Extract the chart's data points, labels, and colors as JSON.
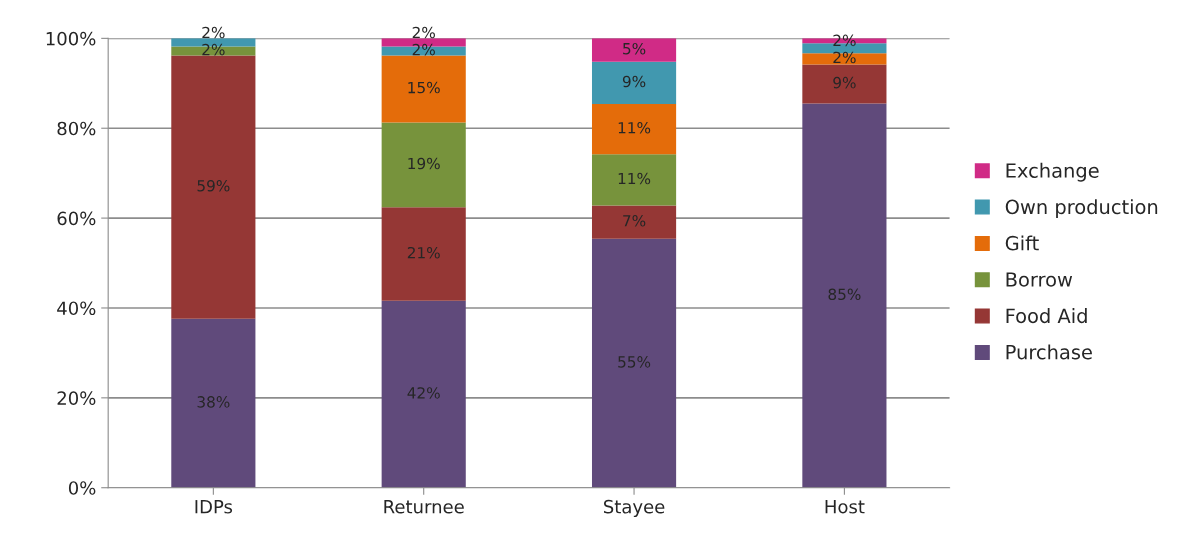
{
  "chart_data": {
    "type": "bar",
    "stacked": true,
    "categories": [
      "IDPs",
      "Returnee",
      "Stayee",
      "Host"
    ],
    "series": [
      {
        "name": "Purchase",
        "color": "#604a7b",
        "values": [
          37.6,
          41.6,
          55.4,
          85.5
        ],
        "value_labels": [
          "38%",
          "42%",
          "55%",
          "85%"
        ]
      },
      {
        "name": "Food Aid",
        "color": "#953735",
        "values": [
          58.6,
          20.8,
          7.4,
          8.7
        ],
        "value_labels": [
          "59%",
          "21%",
          "7%",
          "9%"
        ]
      },
      {
        "name": "Borrow",
        "color": "#77933c",
        "values": [
          2.0,
          18.9,
          11.4,
          0
        ],
        "value_labels": [
          "2%",
          "19%",
          "11%",
          null
        ]
      },
      {
        "name": "Gift",
        "color": "#e46c0a",
        "values": [
          0,
          14.9,
          11.2,
          2.5
        ],
        "value_labels": [
          null,
          "15%",
          "11%",
          "2%"
        ]
      },
      {
        "name": "Own production",
        "color": "#4198af",
        "values": [
          1.8,
          2.0,
          9.4,
          2.2
        ],
        "value_labels": [
          "2%",
          "2%",
          "9%",
          "2%"
        ]
      },
      {
        "name": "Exchange",
        "color": "#d02b86",
        "values": [
          0,
          1.8,
          5.2,
          1.1
        ],
        "value_labels": [
          null,
          "2%",
          "5%",
          null
        ]
      }
    ],
    "ylim": [
      0,
      100
    ],
    "yticks": [
      {
        "value": 0,
        "label": "0%"
      },
      {
        "value": 20,
        "label": "20%"
      },
      {
        "value": 40,
        "label": "40%"
      },
      {
        "value": 60,
        "label": "60%"
      },
      {
        "value": 80,
        "label": "80%"
      },
      {
        "value": 100,
        "label": "100%"
      }
    ],
    "grid": "y",
    "legend": "right"
  }
}
